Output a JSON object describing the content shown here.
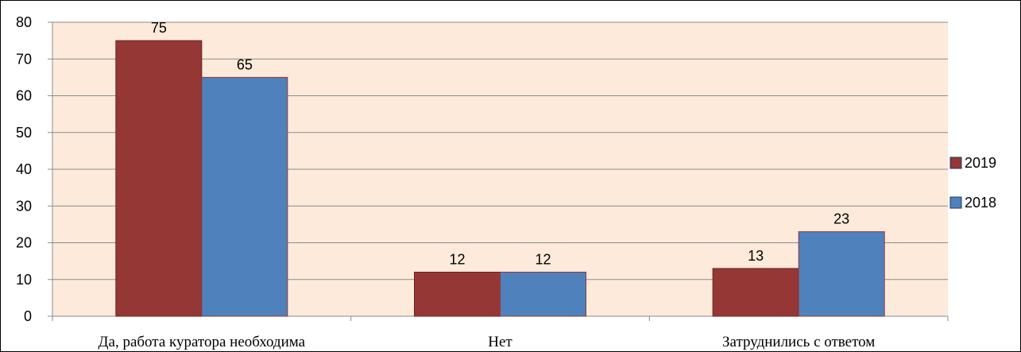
{
  "chart_data": {
    "type": "bar",
    "categories": [
      "Да, работа куратора необходима",
      "Нет",
      "Затруднились с ответом"
    ],
    "series": [
      {
        "name": "2019",
        "values": [
          75,
          12,
          13
        ],
        "color": "#953735"
      },
      {
        "name": "2018",
        "values": [
          65,
          12,
          23
        ],
        "color": "#4f81bd"
      }
    ],
    "ylim": [
      0,
      80
    ],
    "yticks": [
      0,
      10,
      20,
      30,
      40,
      50,
      60,
      70,
      80
    ],
    "grid": true,
    "legend": "right",
    "plot_background": "#fdeada",
    "title": "",
    "xlabel": "",
    "ylabel": ""
  }
}
